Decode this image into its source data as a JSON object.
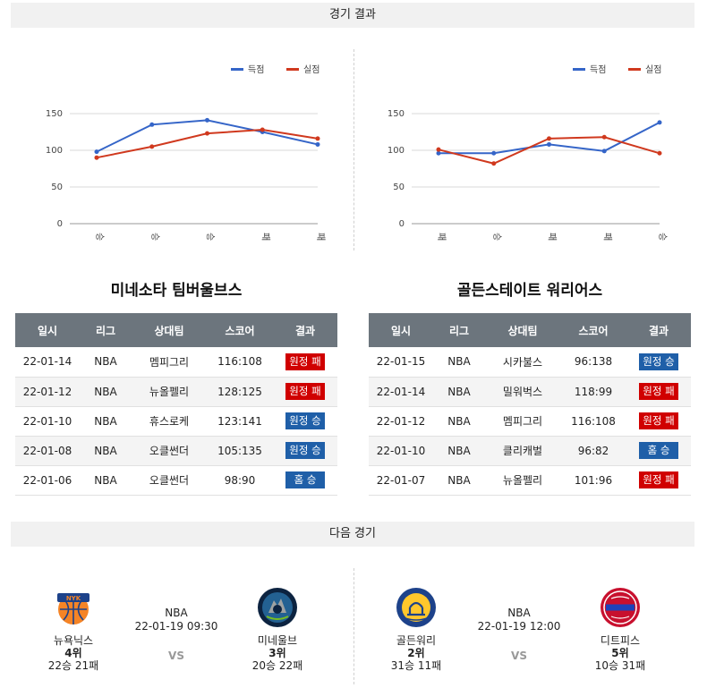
{
  "sections": {
    "results_title": "경기 결과",
    "next_title": "다음 경기"
  },
  "legend": {
    "scored": "득점",
    "conceded": "실점"
  },
  "colors": {
    "scored": "#3565c8",
    "conceded": "#d0391e",
    "loss": "#d00000",
    "win": "#1f5fa8",
    "header": "#6c757d"
  },
  "chart_data": [
    {
      "type": "line",
      "categories": [
        "승",
        "승",
        "승",
        "패",
        "패"
      ],
      "series": [
        {
          "name": "득점",
          "values": [
            98,
            135,
            141,
            125,
            108
          ]
        },
        {
          "name": "실점",
          "values": [
            90,
            105,
            123,
            128,
            116
          ]
        }
      ],
      "yticks": [
        0,
        50,
        100,
        150
      ],
      "ylim": [
        0,
        150
      ],
      "grid": true,
      "legend": "top-right"
    },
    {
      "type": "line",
      "categories": [
        "패",
        "승",
        "패",
        "패",
        "승"
      ],
      "series": [
        {
          "name": "득점",
          "values": [
            96,
            96,
            108,
            99,
            138
          ]
        },
        {
          "name": "실점",
          "values": [
            101,
            82,
            116,
            118,
            96
          ]
        }
      ],
      "yticks": [
        0,
        50,
        100,
        150
      ],
      "ylim": [
        0,
        150
      ],
      "grid": true,
      "legend": "top-right"
    }
  ],
  "table_headers": [
    "일시",
    "리그",
    "상대팀",
    "스코어",
    "결과"
  ],
  "teams": [
    {
      "name": "미네소타 팀버울브스",
      "rows": [
        {
          "date": "22-01-14",
          "league": "NBA",
          "opponent": "멤피그리",
          "score": "116:108",
          "result": "원정 패",
          "type": "loss"
        },
        {
          "date": "22-01-12",
          "league": "NBA",
          "opponent": "뉴올펠리",
          "score": "128:125",
          "result": "원정 패",
          "type": "loss"
        },
        {
          "date": "22-01-10",
          "league": "NBA",
          "opponent": "휴스로케",
          "score": "123:141",
          "result": "원정 승",
          "type": "win"
        },
        {
          "date": "22-01-08",
          "league": "NBA",
          "opponent": "오클썬더",
          "score": "105:135",
          "result": "원정 승",
          "type": "win"
        },
        {
          "date": "22-01-06",
          "league": "NBA",
          "opponent": "오클썬더",
          "score": "98:90",
          "result": "홈 승",
          "type": "win"
        }
      ]
    },
    {
      "name": "골든스테이트 워리어스",
      "rows": [
        {
          "date": "22-01-15",
          "league": "NBA",
          "opponent": "시카불스",
          "score": "96:138",
          "result": "원정 승",
          "type": "win"
        },
        {
          "date": "22-01-14",
          "league": "NBA",
          "opponent": "밀워벅스",
          "score": "118:99",
          "result": "원정 패",
          "type": "loss"
        },
        {
          "date": "22-01-12",
          "league": "NBA",
          "opponent": "멤피그리",
          "score": "116:108",
          "result": "원정 패",
          "type": "loss"
        },
        {
          "date": "22-01-10",
          "league": "NBA",
          "opponent": "클리캐벌",
          "score": "96:82",
          "result": "홈 승",
          "type": "win"
        },
        {
          "date": "22-01-07",
          "league": "NBA",
          "opponent": "뉴올펠리",
          "score": "101:96",
          "result": "원정 패",
          "type": "loss"
        }
      ]
    }
  ],
  "next_games": [
    {
      "home": {
        "name": "뉴욕닉스",
        "rank": "4위",
        "record": "22승 21패",
        "logo": "knicks-logo"
      },
      "league": "NBA",
      "datetime": "22-01-19 09:30",
      "vs": "VS",
      "away": {
        "name": "미네울브",
        "rank": "3위",
        "record": "20승 22패",
        "logo": "timberwolves-logo"
      }
    },
    {
      "home": {
        "name": "골든워리",
        "rank": "2위",
        "record": "31승 11패",
        "logo": "warriors-logo"
      },
      "league": "NBA",
      "datetime": "22-01-19 12:00",
      "vs": "VS",
      "away": {
        "name": "디트피스",
        "rank": "5위",
        "record": "10승 31패",
        "logo": "pistons-logo"
      }
    }
  ]
}
